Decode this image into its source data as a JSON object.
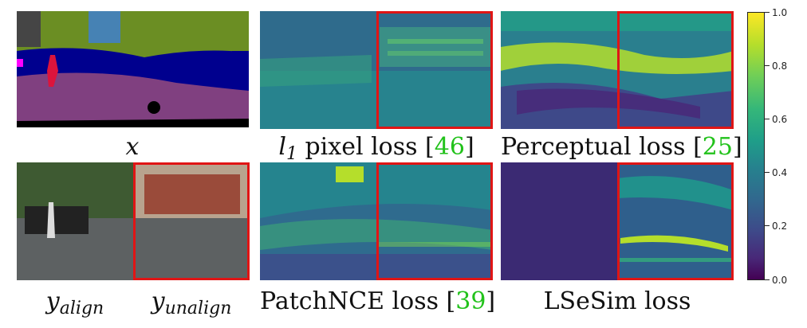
{
  "captions": {
    "x": "x",
    "l1_prefix": "l",
    "l1_sub": "1",
    "l1_text": " pixel loss [",
    "l1_ref": "46",
    "perceptual_text": "Perceptual loss [",
    "perceptual_ref": "25",
    "y_align_base": "y",
    "y_align_sub": "align",
    "y_unalign_base": "y",
    "y_unalign_sub": "unalign",
    "patchnce_text": "PatchNCE loss [",
    "patchnce_ref": "39",
    "lsesim_text": "LSeSim loss",
    "close_bracket": "]"
  },
  "colorbar": {
    "ticks": [
      "1.0",
      "0.8",
      "0.6",
      "0.4",
      "0.2",
      "0.0"
    ]
  },
  "colors": {
    "highlight_box": "#e01515",
    "reference": "#22c21b"
  }
}
